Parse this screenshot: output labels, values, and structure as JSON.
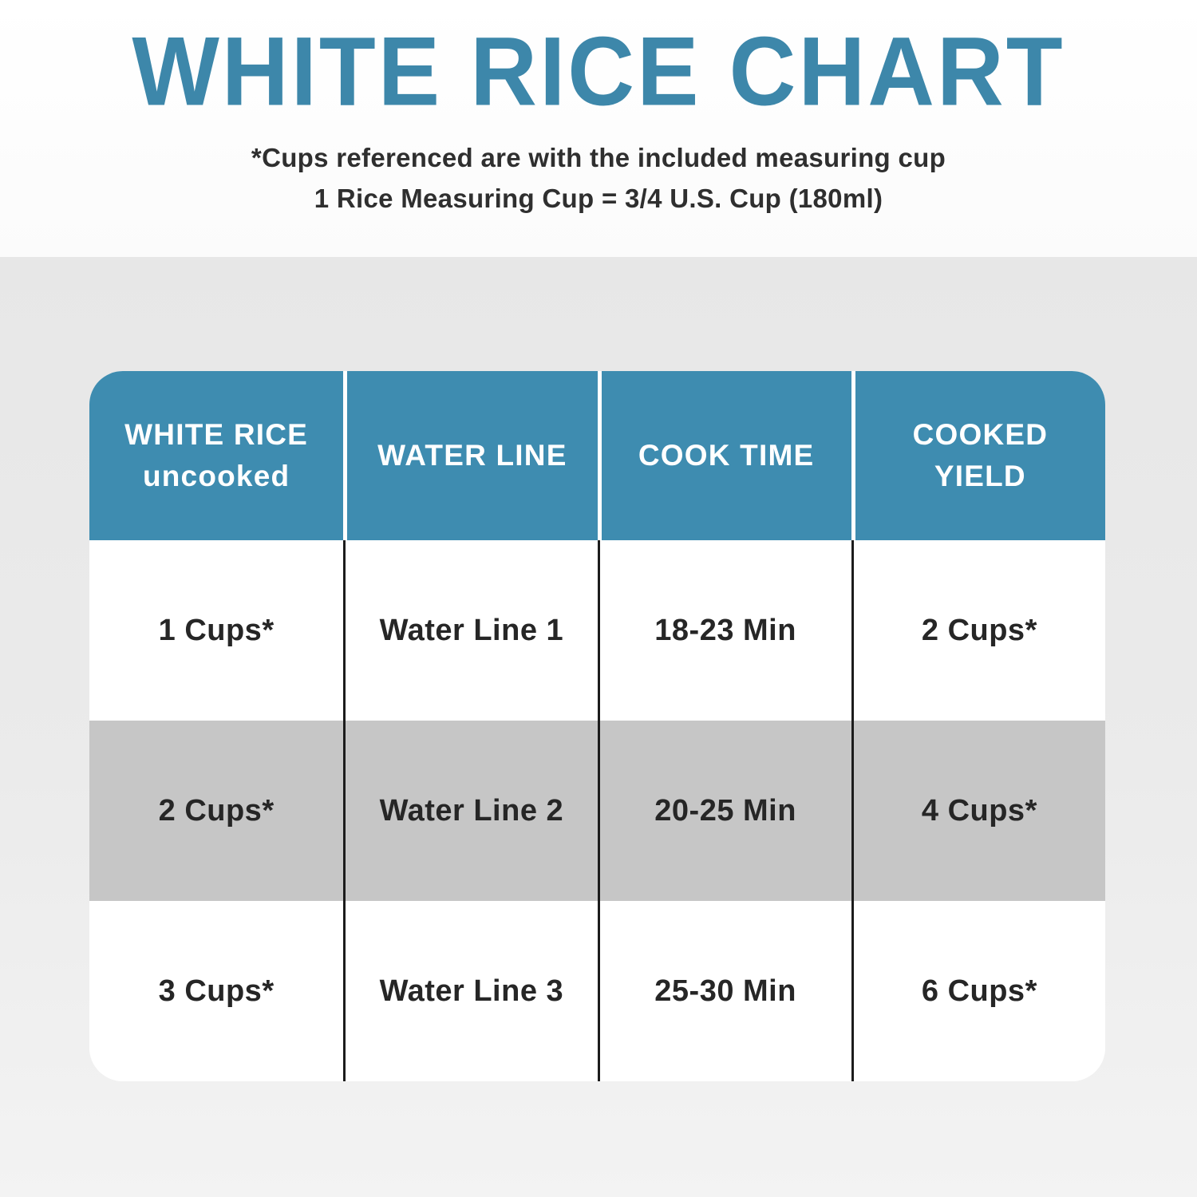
{
  "page": {
    "title": "WHITE RICE CHART",
    "subtitle_line1": "*Cups referenced are with the included measuring cup",
    "subtitle_line2": "1 Rice Measuring Cup = 3/4 U.S. Cup (180ml)"
  },
  "colors": {
    "title_teal": "#3d87aa",
    "header_teal": "#3e8cb0",
    "alt_row_gray": "#c6c6c6",
    "body_text": "#262626",
    "divider_black": "#1c1c1c",
    "band_top_white": "#ffffff",
    "band_bottom_gray": "#e7e7e7"
  },
  "table": {
    "header_display": [
      {
        "line1": "WHITE RICE",
        "line2": "uncooked"
      },
      {
        "line1": "WATER LINE",
        "line2": ""
      },
      {
        "line1": "COOK TIME",
        "line2": ""
      },
      {
        "line1": "COOKED",
        "line2": "YIELD"
      }
    ]
  },
  "chart_data": {
    "type": "table",
    "title": "WHITE RICE CHART",
    "columns": [
      "WHITE RICE uncooked",
      "WATER LINE",
      "COOK TIME",
      "COOKED YIELD"
    ],
    "rows": [
      [
        "1 Cups*",
        "Water Line 1",
        "18-23 Min",
        "2 Cups*"
      ],
      [
        "2 Cups*",
        "Water Line 2",
        "20-25 Min",
        "4 Cups*"
      ],
      [
        "3 Cups*",
        "Water Line 3",
        "25-30 Min",
        "6 Cups*"
      ]
    ],
    "row_striping": [
      "white",
      "gray",
      "white"
    ],
    "notes": [
      "*Cups referenced are with the included measuring cup",
      "1 Rice Measuring Cup = 3/4 U.S. Cup (180ml)"
    ]
  }
}
